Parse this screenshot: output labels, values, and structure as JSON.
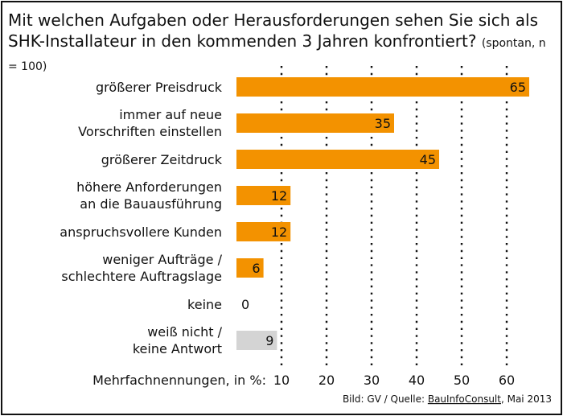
{
  "title_main": "Mit welchen Aufgaben oder Herausforderungen sehen Sie sich als SHK-Installateur in den kommenden 3 Jahren konfrontiert?",
  "title_sub": "(spontan, n = 100)",
  "chart_data": {
    "type": "bar",
    "orientation": "horizontal",
    "title": "Mit welchen Aufgaben oder Herausforderungen sehen Sie sich als SHK-Installateur in den kommenden 3 Jahren konfrontiert? (spontan, n = 100)",
    "categories": [
      [
        "größerer Preisdruck"
      ],
      [
        "immer auf neue",
        "Vorschriften einstellen"
      ],
      [
        "größerer Zeitdruck"
      ],
      [
        "höhere Anforderungen",
        "an die Bauausführung"
      ],
      [
        "anspruchsvollere Kunden"
      ],
      [
        "weniger Aufträge /",
        "schlechtere Auftragslage"
      ],
      [
        "keine"
      ],
      [
        "weiß nicht /",
        "keine Antwort"
      ]
    ],
    "values": [
      65,
      35,
      45,
      12,
      12,
      6,
      0,
      9
    ],
    "colors": [
      "#f39200",
      "#f39200",
      "#f39200",
      "#f39200",
      "#f39200",
      "#f39200",
      "#f39200",
      "#d4d4d4"
    ],
    "xlabel": "Mehrfachnennungen, in %:",
    "xticks": [
      10,
      20,
      30,
      40,
      50,
      60
    ],
    "xlim": [
      0,
      66
    ],
    "grid": "dotted vertical",
    "legend": "none"
  },
  "source": {
    "prefix": "Bild: GV / Quelle: ",
    "link": "BauInfoConsult",
    "suffix": ", Mai 2013"
  }
}
